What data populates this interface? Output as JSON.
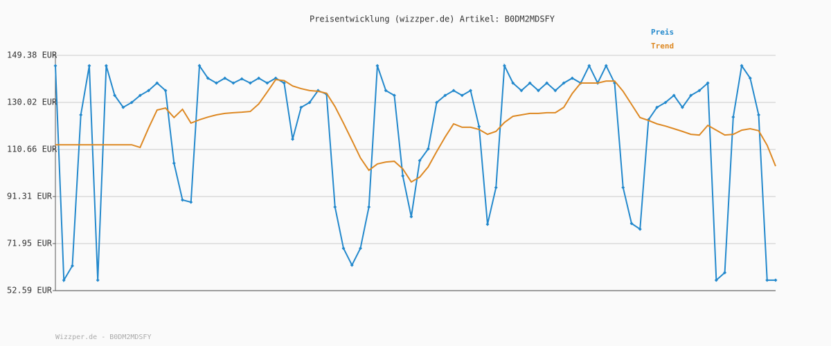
{
  "chart_data": {
    "type": "line",
    "title": "Preisentwicklung (wizzper.de) Artikel: B0DM2MDSFY",
    "footer": "Wizzper.de - B0DM2MDSFY",
    "legend": "top-right",
    "grid": true,
    "ylim": [
      52.59,
      149.38
    ],
    "yticks": [
      {
        "value": 52.59,
        "label": "52.59 EUR"
      },
      {
        "value": 71.95,
        "label": "71.95 EUR"
      },
      {
        "value": 91.31,
        "label": "91.31 EUR"
      },
      {
        "value": 110.66,
        "label": "110.66 EUR"
      },
      {
        "value": 130.02,
        "label": "130.02 EUR"
      },
      {
        "value": 149.38,
        "label": "149.38 EUR"
      }
    ],
    "series": [
      {
        "name": "Preis",
        "color": "#2288cc",
        "markers": true,
        "values": [
          145.1,
          56.9,
          62.8,
          124.9,
          145.1,
          56.9,
          145.1,
          132.9,
          128.0,
          130.0,
          132.9,
          134.9,
          138.0,
          134.9,
          105.0,
          89.9,
          89.0,
          145.1,
          140.0,
          138.0,
          140.0,
          138.0,
          139.7,
          138.0,
          140.0,
          138.0,
          140.0,
          138.0,
          114.9,
          128.0,
          130.0,
          134.9,
          133.4,
          87.0,
          70.0,
          63.1,
          70.0,
          87.0,
          145.1,
          134.9,
          132.9,
          99.8,
          83.0,
          106.1,
          110.9,
          130.0,
          132.9,
          134.9,
          132.9,
          134.9,
          120.1,
          79.9,
          95.0,
          145.1,
          138.0,
          134.9,
          138.0,
          134.9,
          138.0,
          134.9,
          138.0,
          140.0,
          138.0,
          145.1,
          138.0,
          145.1,
          138.0,
          95.0,
          80.2,
          77.9,
          122.9,
          128.0,
          130.0,
          132.9,
          128.0,
          132.9,
          134.9,
          138.0,
          56.9,
          60.0,
          124.0,
          145.1,
          140.0,
          124.9,
          56.9,
          56.9
        ]
      },
      {
        "name": "Trend",
        "color": "#dd8822",
        "markers": false,
        "values": [
          112.6,
          112.6,
          112.6,
          112.6,
          112.6,
          112.6,
          112.6,
          112.6,
          112.6,
          112.6,
          111.5,
          119.5,
          126.9,
          127.7,
          123.8,
          127.2,
          121.5,
          122.9,
          124.0,
          124.9,
          125.5,
          125.8,
          126.0,
          126.3,
          129.4,
          134.3,
          139.4,
          139.0,
          136.8,
          135.7,
          134.9,
          134.6,
          133.8,
          128.3,
          121.5,
          114.4,
          107.2,
          102.1,
          104.7,
          105.5,
          105.8,
          102.7,
          97.3,
          99.3,
          103.5,
          109.8,
          115.8,
          121.2,
          119.8,
          119.8,
          118.9,
          116.9,
          118.1,
          121.8,
          124.3,
          124.9,
          125.5,
          125.5,
          125.8,
          125.8,
          128.0,
          133.7,
          138.0,
          138.0,
          138.0,
          138.8,
          138.8,
          134.6,
          129.2,
          123.8,
          122.6,
          121.2,
          120.3,
          119.2,
          118.1,
          116.9,
          116.6,
          120.6,
          118.6,
          116.6,
          116.9,
          118.6,
          119.2,
          118.4,
          112.4,
          103.8
        ]
      }
    ]
  }
}
